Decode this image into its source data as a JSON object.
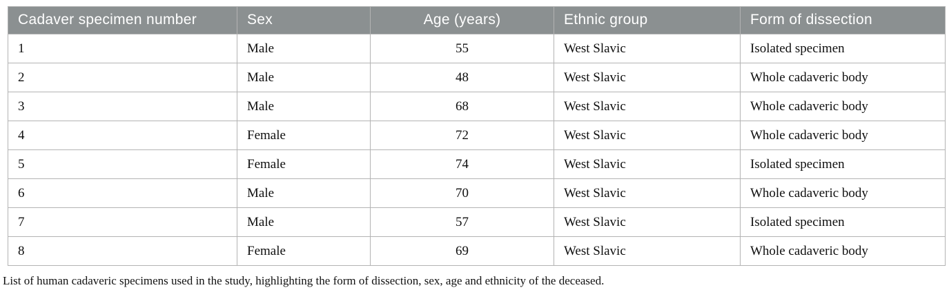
{
  "table": {
    "columns": [
      {
        "label": "Cadaver specimen number",
        "align": "left"
      },
      {
        "label": "Sex",
        "align": "left"
      },
      {
        "label": "Age (years)",
        "align": "center"
      },
      {
        "label": "Ethnic group",
        "align": "left"
      },
      {
        "label": "Form of dissection",
        "align": "left"
      }
    ],
    "rows": [
      [
        "1",
        "Male",
        "55",
        "West Slavic",
        "Isolated specimen"
      ],
      [
        "2",
        "Male",
        "48",
        "West Slavic",
        "Whole cadaveric body"
      ],
      [
        "3",
        "Male",
        "68",
        "West Slavic",
        "Whole cadaveric body"
      ],
      [
        "4",
        "Female",
        "72",
        "West Slavic",
        "Whole cadaveric body"
      ],
      [
        "5",
        "Female",
        "74",
        "West Slavic",
        "Isolated specimen"
      ],
      [
        "6",
        "Male",
        "70",
        "West Slavic",
        "Whole cadaveric body"
      ],
      [
        "7",
        "Male",
        "57",
        "West Slavic",
        "Isolated specimen"
      ],
      [
        "8",
        "Female",
        "69",
        "West Slavic",
        "Whole cadaveric body"
      ]
    ],
    "caption": "List of human cadaveric specimens used in the study, highlighting the form of dissection, sex, age and ethnicity of the deceased."
  },
  "chart_data": {
    "type": "table",
    "columns": [
      "Cadaver specimen number",
      "Sex",
      "Age (years)",
      "Ethnic group",
      "Form of dissection"
    ],
    "rows": [
      [
        "1",
        "Male",
        "55",
        "West Slavic",
        "Isolated specimen"
      ],
      [
        "2",
        "Male",
        "48",
        "West Slavic",
        "Whole cadaveric body"
      ],
      [
        "3",
        "Male",
        "68",
        "West Slavic",
        "Whole cadaveric body"
      ],
      [
        "4",
        "Female",
        "72",
        "West Slavic",
        "Whole cadaveric body"
      ],
      [
        "5",
        "Female",
        "74",
        "West Slavic",
        "Isolated specimen"
      ],
      [
        "6",
        "Male",
        "70",
        "West Slavic",
        "Whole cadaveric body"
      ],
      [
        "7",
        "Male",
        "57",
        "West Slavic",
        "Isolated specimen"
      ],
      [
        "8",
        "Female",
        "69",
        "West Slavic",
        "Whole cadaveric body"
      ]
    ],
    "title": "",
    "caption": "List of human cadaveric specimens used in the study, highlighting the form of dissection, sex, age and ethnicity of the deceased."
  },
  "colors": {
    "header_background": "#8b9091",
    "header_text": "#ffffff",
    "border": "#b3b3b3",
    "body_text": "#0f0f0f",
    "caption_text": "#111111"
  }
}
